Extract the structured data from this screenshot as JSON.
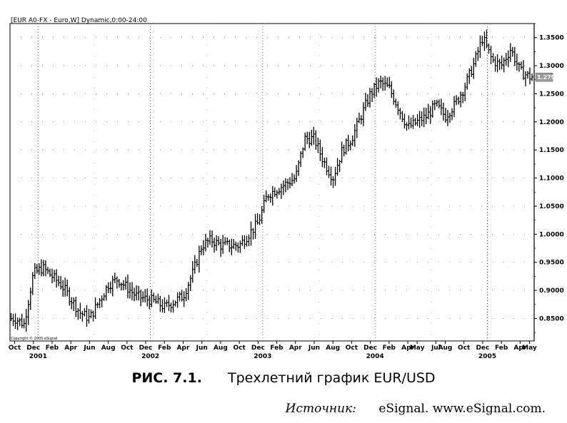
{
  "chart": {
    "header": "[EUR A0-FX - Euro,W] Dynamic,0:00-24:00",
    "copyright": "Copyright © 2005 eSignal",
    "last_price": "1.2795"
  },
  "caption": {
    "figure_number": "РИС. 7.1.",
    "title": "Трехлетний график EUR/USD"
  },
  "source": {
    "label": "Источник:",
    "text": "eSignal. www.eSignal.com."
  },
  "chart_data": {
    "type": "bar",
    "ylim": [
      0.81,
      1.375
    ],
    "grid": true,
    "yticks": [
      "1.3500",
      "1.3000",
      "1.2500",
      "1.2000",
      "1.1500",
      "1.1000",
      "1.0500",
      "1.0000",
      "0.9500",
      "0.9000",
      "0.8500"
    ],
    "xticks": [
      "Oct",
      "Dec",
      "Feb",
      "Apr",
      "Jun",
      "Aug",
      "Oct",
      "Dec",
      "Feb",
      "Apr",
      "Jun",
      "Aug",
      "Oct",
      "Dec",
      "Feb",
      "Apr",
      "Jun",
      "Aug",
      "Oct",
      "Dec",
      "Feb",
      "Apr",
      "May",
      "Jul",
      "Aug",
      "Oct",
      "Dec",
      "Feb",
      "Apr",
      "May"
    ],
    "year_labels": [
      "2001",
      "2002",
      "2003",
      "2004",
      "2005"
    ],
    "x_start": "2000-10",
    "x_end": "2005-05",
    "bars_per_series": "weekly OHLC",
    "key_closes": [
      {
        "date": "2000-10",
        "value": 0.85
      },
      {
        "date": "2000-11",
        "value": 0.84
      },
      {
        "date": "2000-12",
        "value": 0.93
      },
      {
        "date": "2001-01",
        "value": 0.94
      },
      {
        "date": "2001-03",
        "value": 0.91
      },
      {
        "date": "2001-05",
        "value": 0.86
      },
      {
        "date": "2001-06",
        "value": 0.85
      },
      {
        "date": "2001-08",
        "value": 0.91
      },
      {
        "date": "2001-09",
        "value": 0.92
      },
      {
        "date": "2001-11",
        "value": 0.89
      },
      {
        "date": "2002-01",
        "value": 0.88
      },
      {
        "date": "2002-02",
        "value": 0.87
      },
      {
        "date": "2002-04",
        "value": 0.89
      },
      {
        "date": "2002-05",
        "value": 0.93
      },
      {
        "date": "2002-06",
        "value": 0.98
      },
      {
        "date": "2002-07",
        "value": 0.99
      },
      {
        "date": "2002-08",
        "value": 0.98
      },
      {
        "date": "2002-10",
        "value": 0.98
      },
      {
        "date": "2002-12",
        "value": 1.02
      },
      {
        "date": "2003-01",
        "value": 1.07
      },
      {
        "date": "2003-02",
        "value": 1.08
      },
      {
        "date": "2003-04",
        "value": 1.1
      },
      {
        "date": "2003-05",
        "value": 1.17
      },
      {
        "date": "2003-06",
        "value": 1.17
      },
      {
        "date": "2003-07",
        "value": 1.13
      },
      {
        "date": "2003-08",
        "value": 1.1
      },
      {
        "date": "2003-09",
        "value": 1.15
      },
      {
        "date": "2003-10",
        "value": 1.17
      },
      {
        "date": "2003-12",
        "value": 1.25
      },
      {
        "date": "2004-01",
        "value": 1.27
      },
      {
        "date": "2004-02",
        "value": 1.26
      },
      {
        "date": "2004-04",
        "value": 1.19
      },
      {
        "date": "2004-05",
        "value": 1.2
      },
      {
        "date": "2004-06",
        "value": 1.21
      },
      {
        "date": "2004-07",
        "value": 1.23
      },
      {
        "date": "2004-08",
        "value": 1.21
      },
      {
        "date": "2004-09",
        "value": 1.23
      },
      {
        "date": "2004-10",
        "value": 1.26
      },
      {
        "date": "2004-11",
        "value": 1.3
      },
      {
        "date": "2004-12",
        "value": 1.35
      },
      {
        "date": "2005-01",
        "value": 1.31
      },
      {
        "date": "2005-02",
        "value": 1.3
      },
      {
        "date": "2005-03",
        "value": 1.33
      },
      {
        "date": "2005-04",
        "value": 1.29
      },
      {
        "date": "2005-05",
        "value": 1.28
      }
    ]
  }
}
